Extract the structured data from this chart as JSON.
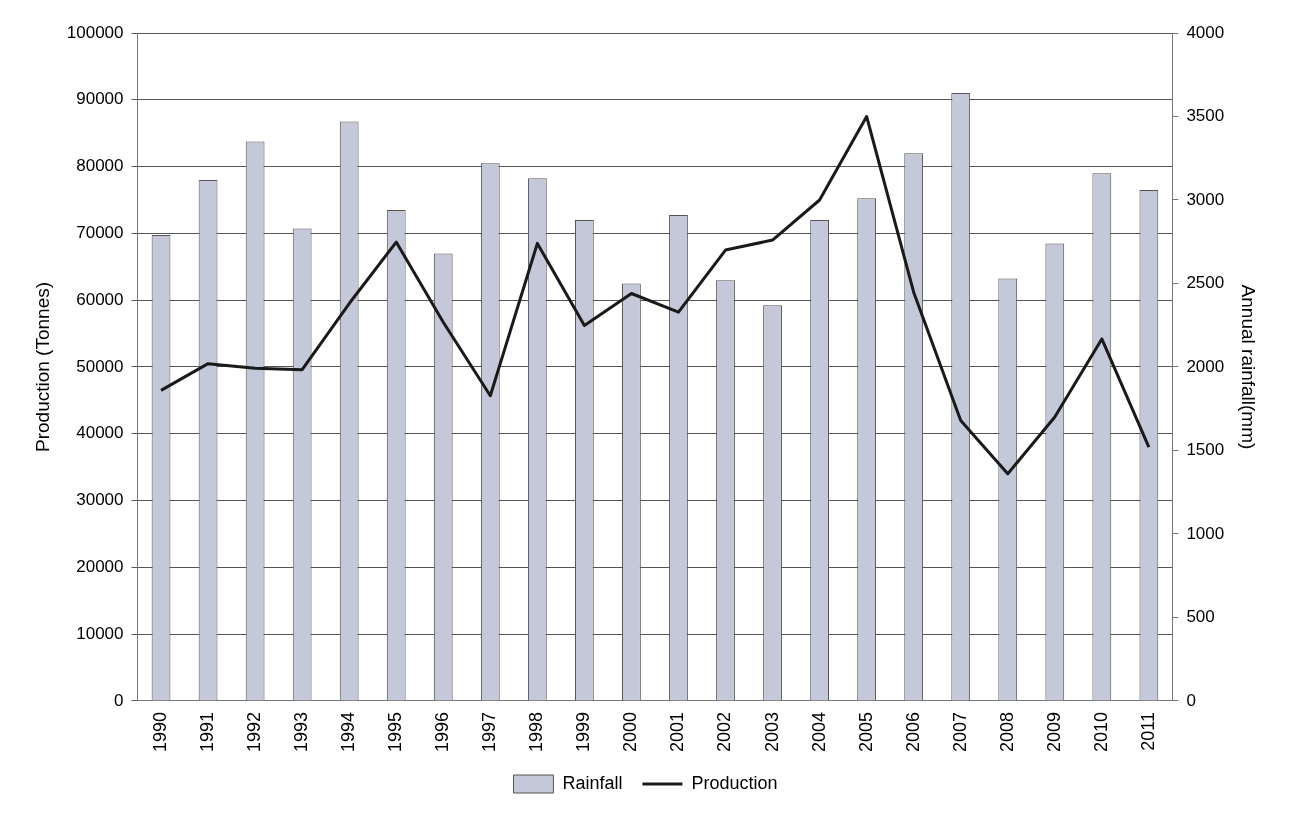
{
  "chart_data": {
    "type": "bar",
    "ylabel": "Production (Tonnes)",
    "y2label": "Annual rainfall(mm)",
    "categories": [
      "1990",
      "1991",
      "1992",
      "1993",
      "1994",
      "1995",
      "1996",
      "1997",
      "1998",
      "1999",
      "2000",
      "2001",
      "2002",
      "2003",
      "2004",
      "2005",
      "2006",
      "2007",
      "2008",
      "2009",
      "2010",
      "2011"
    ],
    "series": [
      {
        "name": "Rainfall",
        "axis": "y2",
        "color": "#c4c8d8",
        "values": [
          2790,
          3120,
          3350,
          2830,
          3470,
          2940,
          2680,
          3220,
          3130,
          2880,
          2500,
          2910,
          2520,
          2370,
          2880,
          3010,
          3280,
          3640,
          2530,
          2740,
          3160,
          3060
        ]
      },
      {
        "name": "Production",
        "type": "line",
        "color": "#1a1a1a",
        "values": [
          46500,
          50500,
          49800,
          49600,
          59500,
          68700,
          56700,
          45700,
          68500,
          56200,
          61000,
          58200,
          67500,
          69000,
          75000,
          87500,
          61200,
          42000,
          34000,
          42500,
          54200,
          38000
        ]
      }
    ],
    "ylim": [
      0,
      100000
    ],
    "yticks": [
      0,
      10000,
      20000,
      30000,
      40000,
      50000,
      60000,
      70000,
      80000,
      90000,
      100000
    ],
    "y2lim": [
      0,
      4000
    ],
    "y2ticks": [
      0,
      500,
      1000,
      1500,
      2000,
      2500,
      3000,
      3500,
      4000
    ],
    "grid": "y",
    "legend": "bottom"
  }
}
